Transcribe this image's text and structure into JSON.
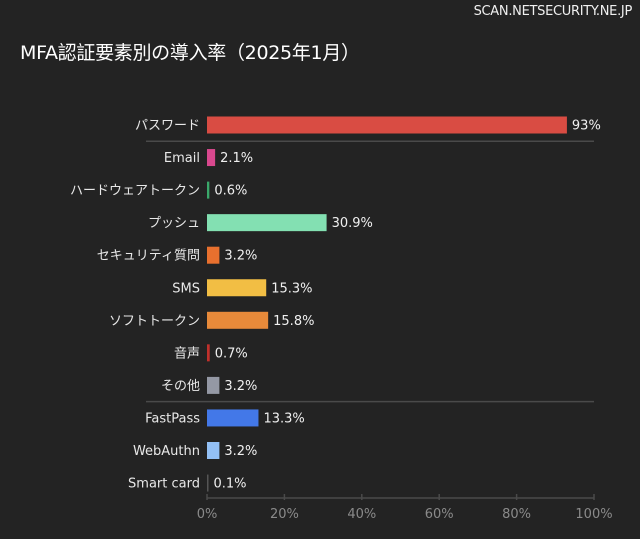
{
  "watermark": "SCAN.NETSECURITY.NE.JP",
  "chart_data": {
    "type": "bar",
    "orientation": "horizontal",
    "title": "MFA認証要素別の導入率（2025年1月）",
    "xlabel": "",
    "ylabel": "",
    "xlim": [
      0,
      100
    ],
    "grid": false,
    "categories": [
      "パスワード",
      "Email",
      "ハードウェアトークン",
      "プッシュ",
      "セキュリティ質問",
      "SMS",
      "ソフトトークン",
      "音声",
      "その他",
      "FastPass",
      "WebAuthn",
      "Smart card"
    ],
    "values": [
      93,
      2.1,
      0.6,
      30.9,
      3.2,
      15.3,
      15.8,
      0.7,
      3.2,
      13.3,
      3.2,
      0.1
    ],
    "data_labels": [
      "93%",
      "2.1%",
      "0.6%",
      "30.9%",
      "3.2%",
      "15.3%",
      "15.8%",
      "0.7%",
      "3.2%",
      "13.3%",
      "3.2%",
      "0.1%"
    ],
    "colors": [
      "#d94c43",
      "#d9488e",
      "#3aa86a",
      "#83e0b2",
      "#e8702e",
      "#f2be44",
      "#e88a3a",
      "#c0302b",
      "#9498a4",
      "#4378e8",
      "#93c0f5",
      "#555555"
    ],
    "group_separators_after": [
      "パスワード",
      "その他"
    ],
    "x_ticks": [
      "0%",
      "20%",
      "40%",
      "60%",
      "80%",
      "100%"
    ]
  }
}
